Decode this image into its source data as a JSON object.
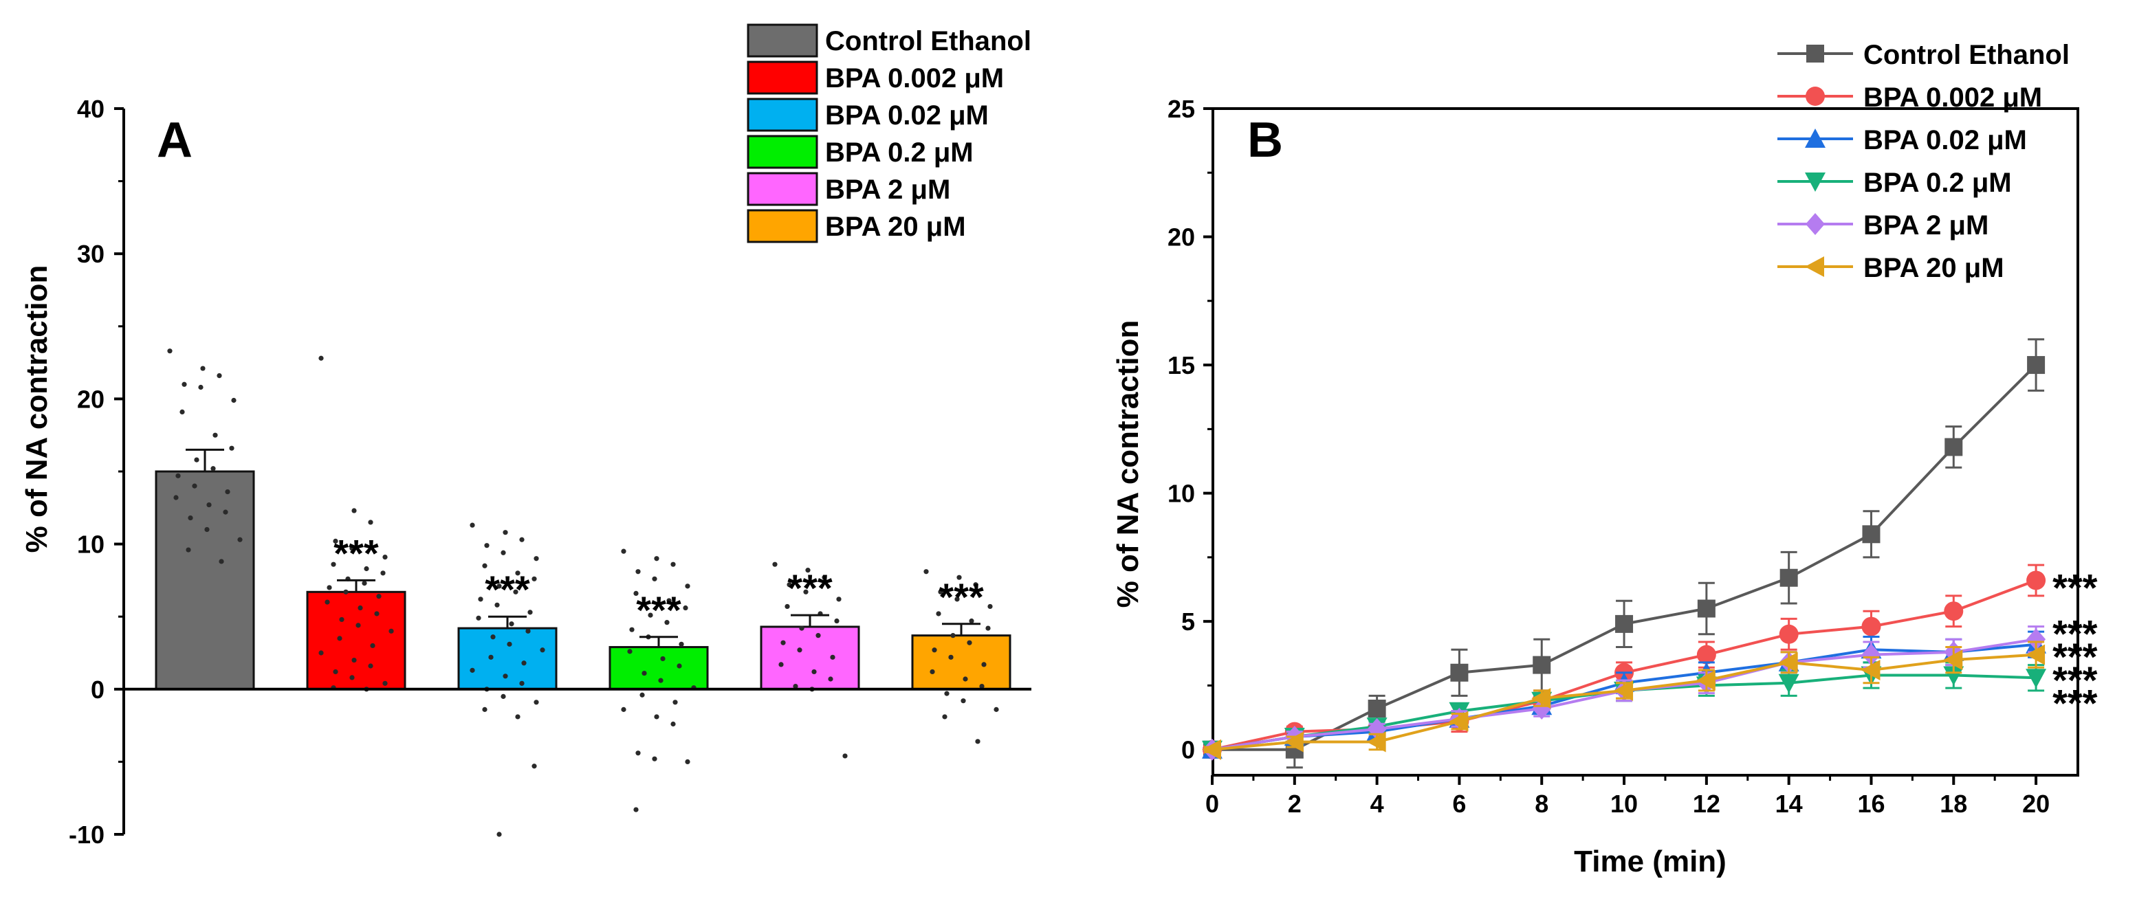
{
  "chart_data": [
    {
      "type": "bar",
      "panel_label": "A",
      "ylabel": "% of NA contraction",
      "xlabel": "",
      "ylim": [
        -10,
        40
      ],
      "yticks": [
        -10,
        0,
        10,
        20,
        30,
        40
      ],
      "categories": [
        "Control Ethanol",
        "BPA 0.002 μM",
        "BPA 0.02 μM",
        "BPA 0.2 μM",
        "BPA 2 μM",
        "BPA 20 μM"
      ],
      "values": [
        15.0,
        6.7,
        4.2,
        2.9,
        4.3,
        3.7
      ],
      "errors": [
        1.5,
        0.8,
        0.8,
        0.7,
        0.8,
        0.8
      ],
      "colors": [
        "#6d6d6d",
        "#ff0000",
        "#00b0f0",
        "#00ee00",
        "#ff66ff",
        "#ffa500"
      ],
      "significance": [
        "",
        "***",
        "***",
        "***",
        "***",
        "***"
      ],
      "points": [
        [
          23.3,
          22.1,
          21.6,
          21.0,
          20.8,
          19.9,
          19.1,
          17.5,
          16.6,
          15.8,
          15.2,
          14.7,
          14.0,
          13.6,
          13.2,
          12.7,
          12.2,
          11.8,
          11.0,
          10.3,
          9.6,
          8.8
        ],
        [
          22.8,
          12.3,
          11.5,
          10.2,
          9.7,
          9.1,
          8.6,
          8.3,
          8.0,
          7.6,
          7.3,
          7.0,
          6.7,
          6.4,
          6.0,
          5.6,
          5.2,
          4.8,
          4.4,
          4.0,
          3.5,
          3.0,
          2.5,
          2.0,
          1.6,
          1.2,
          0.8,
          0.4,
          0.1,
          0.0
        ],
        [
          11.3,
          10.8,
          10.3,
          9.9,
          9.4,
          9.0,
          8.5,
          8.0,
          7.6,
          7.1,
          6.7,
          6.2,
          5.8,
          5.3,
          4.9,
          4.5,
          4.0,
          3.6,
          3.1,
          2.7,
          2.2,
          1.8,
          1.3,
          0.9,
          0.4,
          0.0,
          -0.5,
          -0.9,
          -1.4,
          -1.9,
          -5.3,
          -10.0
        ],
        [
          9.5,
          9.0,
          8.6,
          8.1,
          7.6,
          7.1,
          6.6,
          6.1,
          5.6,
          5.1,
          4.6,
          4.1,
          3.6,
          3.1,
          2.6,
          2.1,
          1.6,
          1.1,
          0.6,
          0.1,
          -0.4,
          -0.9,
          -1.4,
          -1.9,
          -2.4,
          -4.4,
          -4.8,
          -5.0,
          -8.3
        ],
        [
          8.6,
          8.2,
          7.7,
          7.2,
          6.7,
          6.2,
          5.7,
          5.2,
          4.7,
          4.2,
          3.7,
          3.2,
          2.7,
          2.2,
          1.7,
          1.2,
          0.7,
          0.2,
          0.0,
          -4.6
        ],
        [
          8.1,
          7.7,
          7.2,
          6.7,
          6.2,
          5.7,
          5.2,
          4.7,
          4.2,
          3.7,
          3.2,
          2.7,
          2.2,
          1.7,
          1.2,
          0.7,
          0.2,
          -0.3,
          -0.8,
          -1.4,
          -1.9,
          -3.6
        ]
      ],
      "legend": [
        "Control Ethanol",
        "BPA 0.002 μM",
        "BPA 0.02 μM",
        "BPA 0.2 μM",
        "BPA 2 μM",
        "BPA 20 μM"
      ]
    },
    {
      "type": "line",
      "panel_label": "B",
      "xlabel": "Time (min)",
      "ylabel": "% of NA contraction",
      "xlim": [
        0,
        21
      ],
      "ylim": [
        -1,
        25
      ],
      "xticks": [
        0,
        2,
        4,
        6,
        8,
        10,
        12,
        14,
        16,
        18,
        20
      ],
      "yticks": [
        0,
        5,
        10,
        15,
        20,
        25
      ],
      "x": [
        0,
        2,
        4,
        6,
        8,
        10,
        12,
        14,
        16,
        18,
        20
      ],
      "series": [
        {
          "name": "Control Ethanol",
          "color": "#595959",
          "marker": "square",
          "values": [
            0.0,
            0.0,
            1.6,
            3.0,
            3.3,
            4.9,
            5.5,
            6.7,
            8.4,
            11.8,
            15.0
          ],
          "errors": [
            0.1,
            0.7,
            0.5,
            0.9,
            1.0,
            0.9,
            1.0,
            1.0,
            0.9,
            0.8,
            1.0
          ]
        },
        {
          "name": "BPA 0.002 μM",
          "color": "#f25151",
          "marker": "circle",
          "values": [
            0.0,
            0.7,
            0.8,
            1.1,
            1.9,
            3.0,
            3.7,
            4.5,
            4.8,
            5.4,
            6.6
          ],
          "errors": [
            0.1,
            0.2,
            0.3,
            0.4,
            0.4,
            0.4,
            0.5,
            0.6,
            0.6,
            0.6,
            0.6
          ]
        },
        {
          "name": "BPA 0.02 μM",
          "color": "#1f6fe0",
          "marker": "triangle-up",
          "values": [
            0.0,
            0.5,
            0.7,
            1.2,
            1.7,
            2.6,
            3.0,
            3.4,
            3.9,
            3.8,
            4.1
          ],
          "errors": [
            0.1,
            0.2,
            0.2,
            0.3,
            0.3,
            0.4,
            0.4,
            0.4,
            0.5,
            0.5,
            0.5
          ]
        },
        {
          "name": "BPA 0.2 μM",
          "color": "#18b07a",
          "marker": "triangle-down",
          "values": [
            0.0,
            0.5,
            0.9,
            1.5,
            1.9,
            2.3,
            2.5,
            2.6,
            2.9,
            2.9,
            2.8
          ],
          "errors": [
            0.1,
            0.2,
            0.2,
            0.3,
            0.3,
            0.4,
            0.4,
            0.5,
            0.5,
            0.5,
            0.5
          ]
        },
        {
          "name": "BPA 2 μM",
          "color": "#b57cf0",
          "marker": "diamond",
          "values": [
            0.0,
            0.5,
            0.8,
            1.2,
            1.6,
            2.3,
            2.6,
            3.4,
            3.7,
            3.8,
            4.3
          ],
          "errors": [
            0.1,
            0.2,
            0.2,
            0.3,
            0.3,
            0.4,
            0.4,
            0.4,
            0.5,
            0.5,
            0.5
          ]
        },
        {
          "name": "BPA 20 μM",
          "color": "#e0a11b",
          "marker": "triangle-left",
          "values": [
            0.0,
            0.3,
            0.3,
            1.1,
            2.0,
            2.3,
            2.7,
            3.4,
            3.1,
            3.5,
            3.7
          ],
          "errors": [
            0.1,
            0.2,
            0.3,
            0.3,
            0.3,
            0.3,
            0.4,
            0.4,
            0.5,
            0.5,
            0.5
          ]
        }
      ],
      "significance": [
        "***",
        "***",
        "***",
        "***",
        "***"
      ]
    }
  ]
}
